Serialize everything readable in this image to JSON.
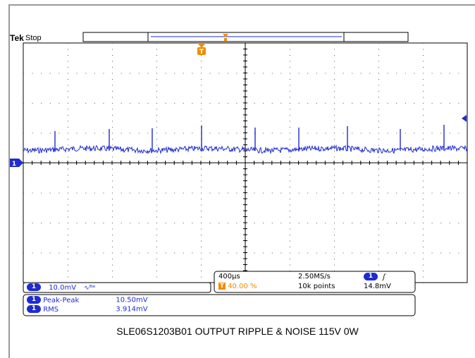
{
  "header": {
    "brand": "Tek",
    "state": "Stop"
  },
  "channel1": {
    "badge": "1",
    "scale": "10.0mV",
    "bw_icon": "bandwidth-limit-icon",
    "color": "#1f2bd0"
  },
  "timebase": {
    "scale": "400µs",
    "sample_rate": "2.50MS/s",
    "trigger_position": "40.00 %",
    "record_length": "10k points",
    "trigger_badge": "T",
    "trigger_color": "#f08c00"
  },
  "trigger": {
    "source_badge": "1",
    "slope_icon": "rising-edge-icon",
    "level": "14.8mV"
  },
  "measurements": [
    {
      "badge": "1",
      "name": "Peak-Peak",
      "value": "10.50mV"
    },
    {
      "badge": "1",
      "name": "RMS",
      "value": "3.914mV"
    }
  ],
  "caption": "SLE06S1203B01 OUTPUT RIPPLE & NOISE 115V 0W"
}
